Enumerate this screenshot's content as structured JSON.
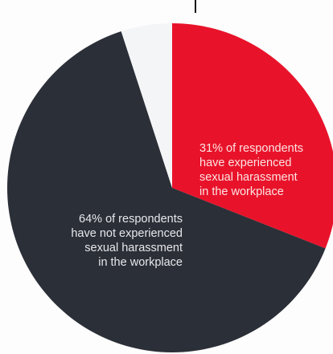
{
  "chart_data": {
    "type": "pie",
    "title": "",
    "slices": [
      {
        "label": "31% of respondents\nhave experienced\nsexual harassment\nin the workplace",
        "value": 31,
        "color": "#e8132a"
      },
      {
        "label": "64% of respondents\nhave not experienced\nsexual harassment\nin the workplace",
        "value": 64,
        "color": "#2b2f37"
      },
      {
        "label": "",
        "value": 5,
        "color": "#f4f5f7"
      }
    ],
    "start_angle_deg": 0,
    "direction": "clockwise",
    "legend": "none"
  }
}
